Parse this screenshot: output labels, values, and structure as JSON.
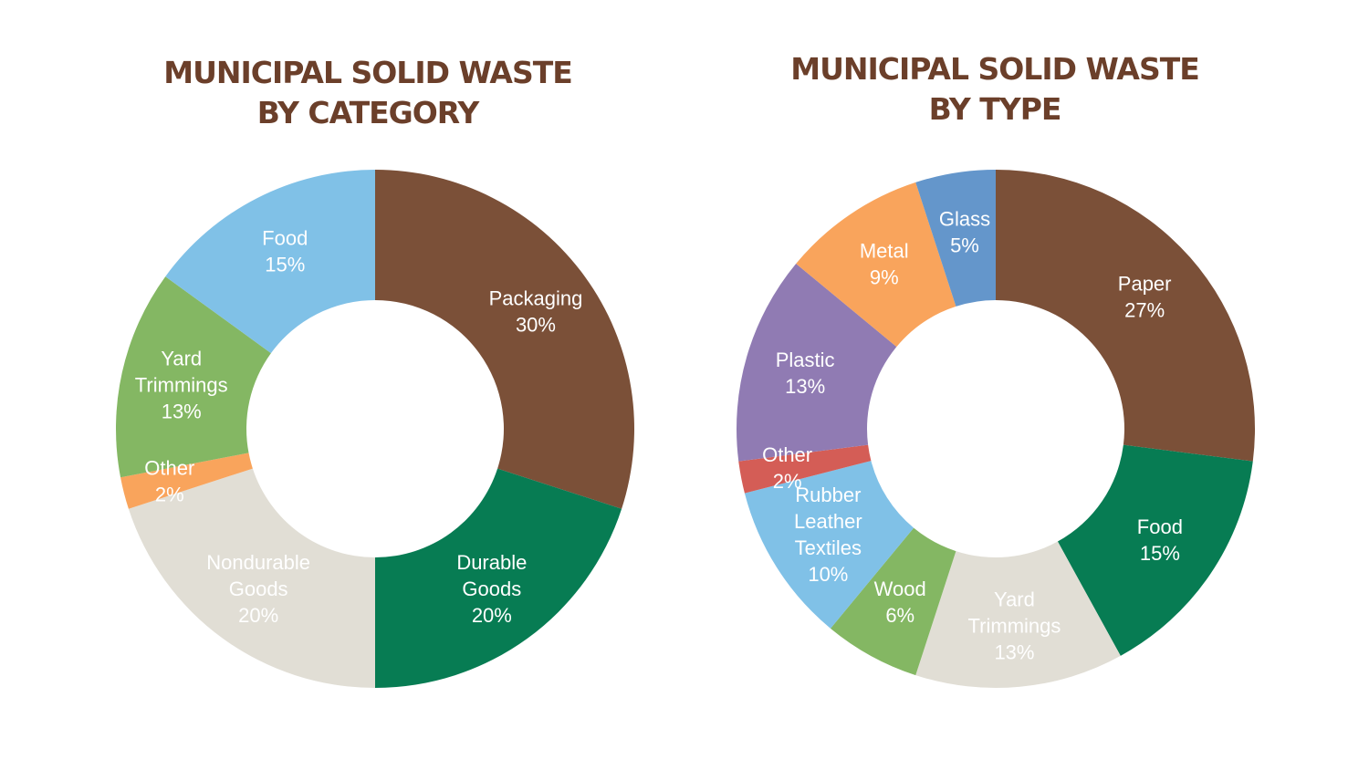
{
  "chart_data": [
    {
      "type": "pie",
      "title_lines": [
        "MUNICIPAL SOLID WASTE",
        "BY CATEGORY"
      ],
      "categories": [
        "Packaging",
        "Durable Goods",
        "Nondurable Goods",
        "Other",
        "Yard Trimmings",
        "Food"
      ],
      "label_lines": [
        [
          "Packaging"
        ],
        [
          "Durable",
          "Goods"
        ],
        [
          "Nondurable",
          "Goods"
        ],
        [
          "Other"
        ],
        [
          "Yard",
          "Trimmings"
        ],
        [
          "Food"
        ]
      ],
      "values": [
        30,
        20,
        20,
        2,
        13,
        15
      ],
      "value_labels": [
        "30%",
        "20%",
        "20%",
        "2%",
        "13%",
        "15%"
      ],
      "colors": [
        "#7b5038",
        "#077c53",
        "#e1ded5",
        "#f9a45c",
        "#84b763",
        "#80c1e7"
      ],
      "donut": true
    },
    {
      "type": "pie",
      "title_lines": [
        "MUNICIPAL SOLID WASTE",
        "BY TYPE"
      ],
      "categories": [
        "Paper",
        "Food",
        "Yard Trimmings",
        "Wood",
        "Rubber Leather Textiles",
        "Other",
        "Plastic",
        "Metal",
        "Glass"
      ],
      "label_lines": [
        [
          "Paper"
        ],
        [
          "Food"
        ],
        [
          "Yard",
          "Trimmings"
        ],
        [
          "Wood"
        ],
        [
          "Rubber",
          "Leather",
          "Textiles"
        ],
        [
          "Other"
        ],
        [
          "Plastic"
        ],
        [
          "Metal"
        ],
        [
          "Glass"
        ]
      ],
      "values": [
        27,
        15,
        13,
        6,
        10,
        2,
        13,
        9,
        5
      ],
      "value_labels": [
        "27%",
        "15%",
        "13%",
        "6%",
        "10%",
        "2%",
        "13%",
        "9%",
        "5%"
      ],
      "colors": [
        "#7b5038",
        "#077c53",
        "#e1ded5",
        "#84b763",
        "#80c1e7",
        "#d45d56",
        "#907bb3",
        "#f9a45c",
        "#6496cb"
      ],
      "donut": true
    }
  ]
}
